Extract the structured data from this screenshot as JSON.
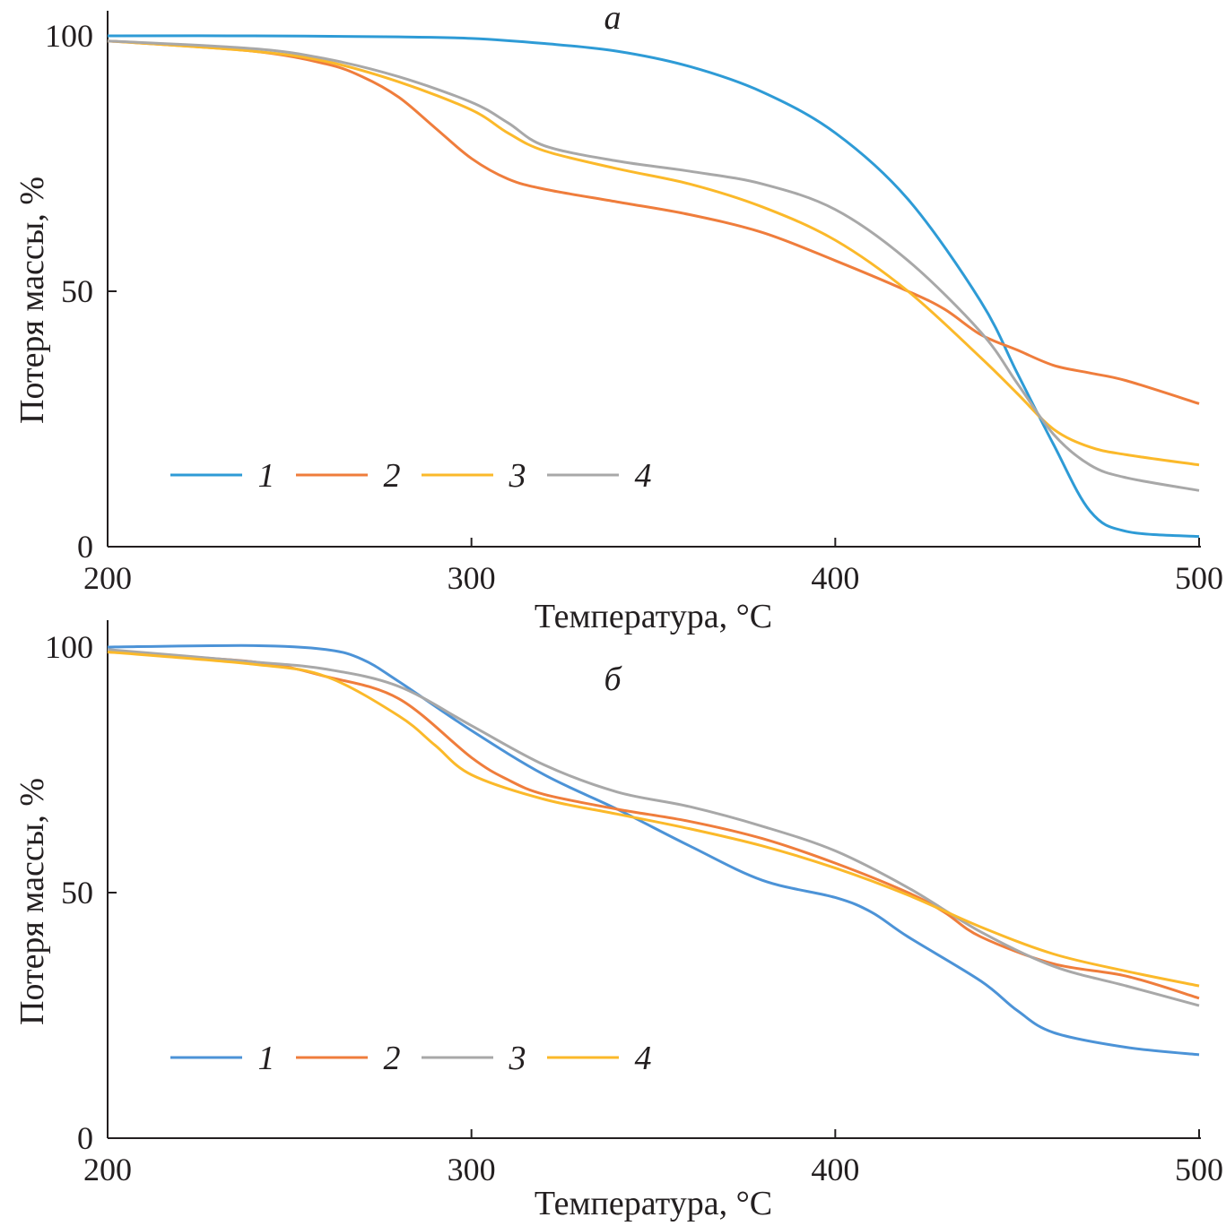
{
  "chart_data": [
    {
      "type": "line",
      "panel_label": "а",
      "xlabel": "Температура, °C",
      "ylabel": "Потеря массы, %",
      "xlim": [
        200,
        500
      ],
      "ylim": [
        0,
        100
      ],
      "xticks": [
        200,
        300,
        400,
        500
      ],
      "yticks": [
        0,
        50,
        100
      ],
      "grid": false,
      "legend_placement": "bottom-left",
      "series": [
        {
          "name": "1",
          "color": "#2e9bd6",
          "x": [
            200,
            240,
            280,
            300,
            320,
            340,
            360,
            380,
            400,
            420,
            440,
            450,
            460,
            470,
            480,
            500
          ],
          "y": [
            100,
            100,
            99.8,
            99.5,
            98.5,
            97,
            94,
            89,
            81,
            68,
            48,
            34,
            20,
            7,
            3,
            2
          ]
        },
        {
          "name": "2",
          "color": "#ef7d3c",
          "x": [
            200,
            240,
            260,
            270,
            280,
            290,
            300,
            310,
            320,
            340,
            360,
            380,
            400,
            420,
            430,
            440,
            450,
            460,
            470,
            480,
            500
          ],
          "y": [
            99,
            97,
            94.5,
            92,
            88,
            82,
            76,
            72,
            70,
            67.5,
            65,
            61.5,
            56,
            50,
            46.5,
            41.5,
            38.5,
            35.5,
            34,
            32.5,
            28
          ]
        },
        {
          "name": "3",
          "color": "#fbb92a",
          "x": [
            200,
            240,
            260,
            280,
            300,
            310,
            320,
            340,
            360,
            380,
            400,
            420,
            440,
            450,
            460,
            470,
            480,
            500
          ],
          "y": [
            99,
            97,
            95,
            91,
            85.5,
            81,
            77.5,
            74,
            71,
            66.5,
            60,
            50,
            37,
            30,
            23,
            19.5,
            18,
            16
          ]
        },
        {
          "name": "4",
          "color": "#a8a8a8",
          "x": [
            200,
            240,
            260,
            280,
            300,
            310,
            320,
            340,
            360,
            380,
            400,
            420,
            440,
            450,
            460,
            470,
            480,
            500
          ],
          "y": [
            99,
            97.5,
            95.5,
            92,
            87,
            83,
            78.5,
            75.5,
            73.5,
            71,
            66,
            56,
            42,
            32,
            22,
            16,
            13.5,
            11
          ]
        }
      ]
    },
    {
      "type": "line",
      "panel_label": "б",
      "xlabel": "Температура, °C",
      "ylabel": "Потеря массы, %",
      "xlim": [
        200,
        500
      ],
      "ylim": [
        0,
        100
      ],
      "xticks": [
        200,
        300,
        400,
        500
      ],
      "yticks": [
        0,
        50,
        100
      ],
      "grid": false,
      "legend_placement": "bottom-left",
      "series": [
        {
          "name": "1",
          "color": "#4c93d7",
          "x": [
            200,
            240,
            260,
            270,
            280,
            300,
            320,
            340,
            360,
            380,
            400,
            410,
            420,
            440,
            450,
            460,
            480,
            500
          ],
          "y": [
            100,
            100.3,
            99.5,
            97.5,
            93,
            83,
            74,
            67,
            59.5,
            52.5,
            49,
            46,
            41,
            32,
            26,
            21.5,
            18.5,
            17
          ]
        },
        {
          "name": "2",
          "color": "#ef7d3c",
          "x": [
            200,
            240,
            260,
            280,
            300,
            310,
            320,
            340,
            360,
            380,
            400,
            420,
            430,
            440,
            460,
            480,
            500
          ],
          "y": [
            99,
            97,
            94,
            89.5,
            77.5,
            73,
            70,
            67,
            64.5,
            61,
            56,
            50,
            46,
            41,
            35.5,
            33,
            28.5
          ]
        },
        {
          "name": "3",
          "color": "#a8a8a8",
          "x": [
            200,
            240,
            260,
            280,
            300,
            320,
            340,
            360,
            380,
            400,
            420,
            440,
            460,
            480,
            500
          ],
          "y": [
            99.5,
            97,
            95.5,
            92,
            84,
            76,
            70.5,
            67.5,
            63.5,
            58.5,
            51,
            42,
            35,
            31,
            27
          ]
        },
        {
          "name": "4",
          "color": "#fbb92a",
          "x": [
            200,
            240,
            260,
            280,
            290,
            300,
            320,
            340,
            360,
            380,
            400,
            420,
            440,
            460,
            480,
            500
          ],
          "y": [
            99,
            96.5,
            94,
            86,
            80,
            74,
            69,
            66,
            63,
            59.5,
            55,
            49.5,
            43,
            37.5,
            34,
            31
          ]
        }
      ]
    }
  ]
}
